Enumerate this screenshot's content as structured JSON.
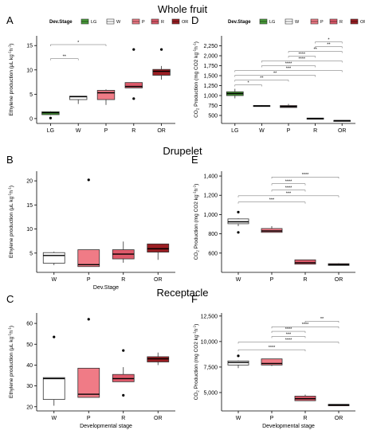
{
  "row_titles": [
    "Whole fruit",
    "Drupelet",
    "Receptacle"
  ],
  "legend": {
    "title": "Dev.Stage",
    "items": [
      {
        "label": "LG",
        "color": "#4a9e3a"
      },
      {
        "label": "W",
        "color": "#ffffff"
      },
      {
        "label": "P",
        "color": "#f07b86"
      },
      {
        "label": "R",
        "color": "#df5a6b"
      },
      {
        "label": "OR",
        "color": "#9c1e23"
      }
    ]
  },
  "colors": {
    "LG": "#4a9e3a",
    "W": "#ffffff",
    "P": "#f07b86",
    "R": "#df5a6b",
    "OR": "#9c1e23"
  },
  "chart_data": [
    {
      "panel": "A",
      "type": "box",
      "ylabel_pre": "Ethylene production (μL kg",
      "ylabel_post": ")",
      "xlabel": "",
      "categories": [
        "LG",
        "W",
        "P",
        "R",
        "OR"
      ],
      "ylim": [
        -1,
        17
      ],
      "yticks": [
        0,
        5,
        10,
        15
      ],
      "ytick_labels": [
        "0",
        "5",
        "10",
        "15"
      ],
      "boxes": [
        {
          "cat": "LG",
          "q1": 0.8,
          "median": 1.2,
          "q3": 1.4,
          "low": 0.7,
          "high": 1.5,
          "outliers": [
            0.1
          ]
        },
        {
          "cat": "W",
          "q1": 3.9,
          "median": 4.5,
          "q3": 4.6,
          "low": 3.0,
          "high": 4.6,
          "outliers": []
        },
        {
          "cat": "P",
          "q1": 3.9,
          "median": 5.3,
          "q3": 5.8,
          "low": 2.8,
          "high": 6.0,
          "outliers": []
        },
        {
          "cat": "R",
          "q1": 6.3,
          "median": 6.6,
          "q3": 7.4,
          "low": 6.3,
          "high": 7.4,
          "outliers": [
            14.2,
            4.1
          ]
        },
        {
          "cat": "OR",
          "q1": 8.9,
          "median": 9.7,
          "q3": 10.1,
          "low": 8.0,
          "high": 10.8,
          "outliers": [
            14.2
          ]
        }
      ],
      "brackets": [
        {
          "from": "LG",
          "to": "W",
          "y": 12.3,
          "label": "**"
        },
        {
          "from": "LG",
          "to": "P",
          "y": 15.2,
          "label": "*"
        }
      ]
    },
    {
      "panel": "D",
      "type": "box",
      "ylabel_pre": "CO",
      "ylabel_mid": " Production (mg CO2 kg",
      "ylabel_post": ")",
      "xlabel": "",
      "categories": [
        "LG",
        "W",
        "P",
        "R",
        "OR"
      ],
      "ylim": [
        300,
        2500
      ],
      "yticks": [
        500,
        750,
        1000,
        1250,
        1500,
        1750,
        2000,
        2250
      ],
      "ytick_labels": [
        "500",
        "750",
        "1,000",
        "1,250",
        "1,500",
        "1,750",
        "2,000",
        "2,250"
      ],
      "boxes": [
        {
          "cat": "LG",
          "q1": 1000,
          "median": 1050,
          "q3": 1095,
          "low": 930,
          "high": 1170,
          "outliers": []
        },
        {
          "cat": "W",
          "q1": 725,
          "median": 740,
          "q3": 750,
          "low": 725,
          "high": 760,
          "outliers": []
        },
        {
          "cat": "P",
          "q1": 700,
          "median": 725,
          "q3": 750,
          "low": 700,
          "high": 790,
          "outliers": []
        },
        {
          "cat": "R",
          "q1": 405,
          "median": 425,
          "q3": 435,
          "low": 405,
          "high": 440,
          "outliers": []
        },
        {
          "cat": "OR",
          "q1": 365,
          "median": 370,
          "q3": 375,
          "low": 360,
          "high": 378,
          "outliers": []
        }
      ],
      "brackets": [
        {
          "from": "LG",
          "to": "W",
          "y": 1270,
          "label": "*"
        },
        {
          "from": "LG",
          "to": "P",
          "y": 1390,
          "label": "**"
        },
        {
          "from": "LG",
          "to": "R",
          "y": 1510,
          "label": "**"
        },
        {
          "from": "LG",
          "to": "OR",
          "y": 1630,
          "label": "***"
        },
        {
          "from": "W",
          "to": "R",
          "y": 1750,
          "label": "****"
        },
        {
          "from": "W",
          "to": "OR",
          "y": 1870,
          "label": "****"
        },
        {
          "from": "P",
          "to": "R",
          "y": 1990,
          "label": "****"
        },
        {
          "from": "P",
          "to": "OR",
          "y": 2110,
          "label": "**"
        },
        {
          "from": "R",
          "to": "OR",
          "y": 2230,
          "label": "**"
        },
        {
          "from": "R",
          "to": "OR",
          "y": 2350,
          "label": "*"
        }
      ]
    },
    {
      "panel": "B",
      "type": "box",
      "ylabel_pre": "Ethylene production (μL kg",
      "ylabel_post": ")",
      "xlabel": "Dev.Stage",
      "categories": [
        "W",
        "P",
        "R",
        "OR"
      ],
      "ylim": [
        1,
        22
      ],
      "yticks": [
        5,
        10,
        15,
        20
      ],
      "ytick_labels": [
        "5",
        "10",
        "15",
        "20"
      ],
      "boxes": [
        {
          "cat": "W",
          "q1": 2.9,
          "median": 4.5,
          "q3": 5.1,
          "low": 2.5,
          "high": 5.3,
          "outliers": []
        },
        {
          "cat": "P",
          "q1": 2.2,
          "median": 2.6,
          "q3": 5.7,
          "low": 2.2,
          "high": 5.7,
          "outliers": [
            20.2
          ]
        },
        {
          "cat": "R",
          "q1": 3.8,
          "median": 4.8,
          "q3": 5.7,
          "low": 3.0,
          "high": 7.4,
          "outliers": []
        },
        {
          "cat": "OR",
          "q1": 5.2,
          "median": 5.9,
          "q3": 6.9,
          "low": 3.6,
          "high": 6.9,
          "outliers": []
        }
      ],
      "brackets": []
    },
    {
      "panel": "E",
      "type": "box",
      "ylabel_pre": "CO",
      "ylabel_mid": " Production (mg CO2 kg",
      "ylabel_post": ")",
      "xlabel": "",
      "categories": [
        "W",
        "P",
        "R",
        "OR"
      ],
      "ylim": [
        400,
        1450
      ],
      "yticks": [
        600,
        800,
        1000,
        1200,
        1400
      ],
      "ytick_labels": [
        "600",
        "800",
        "1,000",
        "1,200",
        "1,400"
      ],
      "boxes": [
        {
          "cat": "W",
          "q1": 905,
          "median": 925,
          "q3": 955,
          "low": 880,
          "high": 960,
          "outliers": [
            1025,
            815
          ]
        },
        {
          "cat": "P",
          "q1": 815,
          "median": 830,
          "q3": 855,
          "low": 815,
          "high": 880,
          "outliers": []
        },
        {
          "cat": "R",
          "q1": 485,
          "median": 500,
          "q3": 530,
          "low": 485,
          "high": 530,
          "outliers": []
        },
        {
          "cat": "OR",
          "q1": 472,
          "median": 480,
          "q3": 490,
          "low": 470,
          "high": 495,
          "outliers": []
        }
      ],
      "brackets": [
        {
          "from": "W",
          "to": "R",
          "y": 1130,
          "label": "***"
        },
        {
          "from": "W",
          "to": "OR",
          "y": 1195,
          "label": "***"
        },
        {
          "from": "P",
          "to": "R",
          "y": 1255,
          "label": "****"
        },
        {
          "from": "P",
          "to": "R",
          "y": 1320,
          "label": "****"
        },
        {
          "from": "P",
          "to": "OR",
          "y": 1390,
          "label": "****"
        }
      ]
    },
    {
      "panel": "C",
      "type": "box",
      "ylabel_pre": "Ethylene production (μL kg",
      "ylabel_post": ")",
      "xlabel": "Developmental stage",
      "categories": [
        "W",
        "P",
        "R",
        "OR"
      ],
      "ylim": [
        18,
        65
      ],
      "yticks": [
        20,
        30,
        40,
        50,
        60
      ],
      "ytick_labels": [
        "20",
        "30",
        "40",
        "50",
        "60"
      ],
      "boxes": [
        {
          "cat": "W",
          "q1": 23.5,
          "median": 33.5,
          "q3": 34,
          "low": 20.5,
          "high": 34,
          "outliers": [
            53.5
          ]
        },
        {
          "cat": "P",
          "q1": 24.5,
          "median": 26,
          "q3": 38.5,
          "low": 24.5,
          "high": 38.5,
          "outliers": [
            62
          ]
        },
        {
          "cat": "R",
          "q1": 32,
          "median": 33.5,
          "q3": 35.5,
          "low": 32,
          "high": 39,
          "outliers": [
            47,
            25.5
          ]
        },
        {
          "cat": "OR",
          "q1": 41.5,
          "median": 43,
          "q3": 44,
          "low": 40,
          "high": 46,
          "outliers": []
        }
      ],
      "brackets": []
    },
    {
      "panel": "F",
      "type": "box",
      "ylabel_pre": "CO",
      "ylabel_mid": " Production (mg CO2 kg",
      "ylabel_post": ")",
      "xlabel": "Developmental stage",
      "categories": [
        "W",
        "P",
        "R",
        "OR"
      ],
      "ylim": [
        3200,
        12800
      ],
      "yticks": [
        5000,
        7500,
        10000,
        12500
      ],
      "ytick_labels": [
        "5,000",
        "7,500",
        "10,000",
        "12,500"
      ],
      "boxes": [
        {
          "cat": "W",
          "q1": 7700,
          "median": 7950,
          "q3": 8100,
          "low": 7400,
          "high": 8150,
          "outliers": [
            8600
          ]
        },
        {
          "cat": "P",
          "q1": 7700,
          "median": 7850,
          "q3": 8300,
          "low": 7600,
          "high": 8300,
          "outliers": []
        },
        {
          "cat": "R",
          "q1": 4200,
          "median": 4400,
          "q3": 4650,
          "low": 4200,
          "high": 4800,
          "outliers": []
        },
        {
          "cat": "OR",
          "q1": 3700,
          "median": 3780,
          "q3": 3850,
          "low": 3700,
          "high": 3850,
          "outliers": []
        }
      ],
      "brackets": [
        {
          "from": "W",
          "to": "R",
          "y": 9200,
          "label": "****"
        },
        {
          "from": "W",
          "to": "OR",
          "y": 9950,
          "label": "****"
        },
        {
          "from": "P",
          "to": "R",
          "y": 10500,
          "label": "***"
        },
        {
          "from": "P",
          "to": "R",
          "y": 11000,
          "label": "****"
        },
        {
          "from": "P",
          "to": "OR",
          "y": 11450,
          "label": "****"
        },
        {
          "from": "R",
          "to": "OR",
          "y": 12000,
          "label": "**"
        }
      ]
    }
  ]
}
